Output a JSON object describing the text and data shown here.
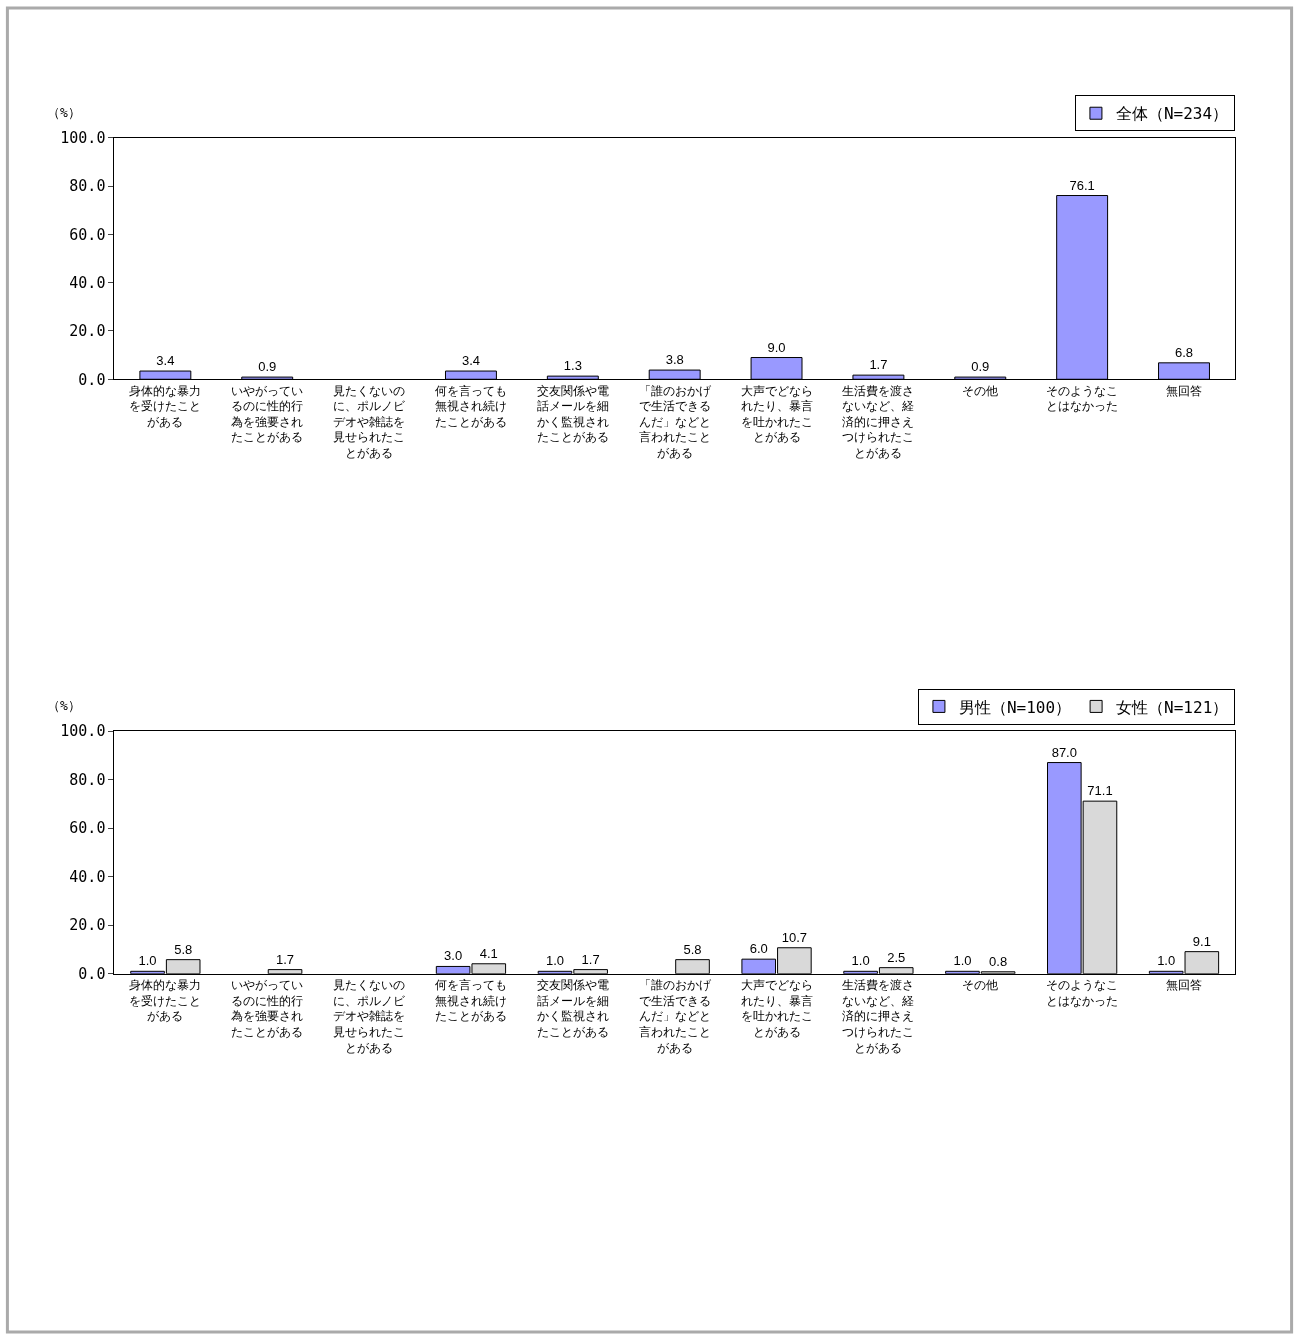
{
  "chart_data": [
    {
      "type": "bar",
      "ylabel": "（%）",
      "categories": [
        "身体的な暴力を受けたことがある",
        "いやがっているのに性的行為を強要されたことがある",
        "見たくないのに、ポルノビデオや雑誌を見せられたことがある",
        "何を言っても無視され続けたことがある",
        "交友関係や電話メールを細かく監視されたことがある",
        "「誰のおかげで生活できるんだ」などと言われたことがある",
        "大声でどなられたり、暴言を吐かれたことがある",
        "生活費を渡さないなど、経済的に押さえつけられたことがある",
        "その他",
        "そのようなことはなかった",
        "無回答"
      ],
      "series": [
        {
          "name": "全体（N=234）",
          "color": "#9999ff",
          "values": [
            3.4,
            0.9,
            null,
            3.4,
            1.3,
            3.8,
            9,
            1.7,
            0.9,
            76.1,
            6.8
          ],
          "value_labels": [
            "3.4",
            "0.9",
            null,
            "3.4",
            "1.3",
            "3.8",
            "9.0",
            "1.7",
            "0.9",
            "76.1",
            "6.8"
          ]
        }
      ],
      "ylim": [
        0,
        100
      ],
      "yticks": [
        {
          "value": 0,
          "label": "0.0"
        },
        {
          "value": 20,
          "label": "20.0"
        },
        {
          "value": 40,
          "label": "40.0"
        },
        {
          "value": 60,
          "label": "60.0"
        },
        {
          "value": 80,
          "label": "80.0"
        },
        {
          "value": 100,
          "label": "100.0"
        }
      ],
      "grid": false,
      "legend": "top right"
    },
    {
      "type": "bar",
      "ylabel": "（%）",
      "categories": [
        "身体的な暴力を受けたことがある",
        "いやがっているのに性的行為を強要されたことがある",
        "見たくないのに、ポルノビデオや雑誌を見せられたことがある",
        "何を言っても無視され続けたことがある",
        "交友関係や電話メールを細かく監視されたことがある",
        "「誰のおかげで生活できるんだ」などと言われたことがある",
        "大声でどなられたり、暴言を吐かれたことがある",
        "生活費を渡さないなど、経済的に押さえつけられたことがある",
        "その他",
        "そのようなことはなかった",
        "無回答"
      ],
      "series": [
        {
          "name": "男性（N=100）",
          "color": "#9999ff",
          "values": [
            1,
            null,
            null,
            3,
            1,
            null,
            6,
            1,
            1,
            87,
            1
          ],
          "value_labels": [
            "1.0",
            null,
            null,
            "3.0",
            "1.0",
            null,
            "6.0",
            "1.0",
            "1.0",
            "87.0",
            "1.0"
          ]
        },
        {
          "name": "女性（N=121）",
          "color": "#d9d9d9",
          "values": [
            5.8,
            1.7,
            null,
            4.1,
            1.7,
            5.8,
            10.7,
            2.5,
            0.8,
            71.1,
            9.1
          ],
          "value_labels": [
            "5.8",
            "1.7",
            null,
            "4.1",
            "1.7",
            "5.8",
            "10.7",
            "2.5",
            "0.8",
            "71.1",
            "9.1"
          ]
        }
      ],
      "ylim": [
        0,
        100
      ],
      "yticks": [
        {
          "value": 0,
          "label": "0.0"
        },
        {
          "value": 20,
          "label": "20.0"
        },
        {
          "value": 40,
          "label": "40.0"
        },
        {
          "value": 60,
          "label": "60.0"
        },
        {
          "value": 80,
          "label": "80.0"
        },
        {
          "value": 100,
          "label": "100.0"
        }
      ],
      "grid": false,
      "legend": "top right"
    }
  ]
}
